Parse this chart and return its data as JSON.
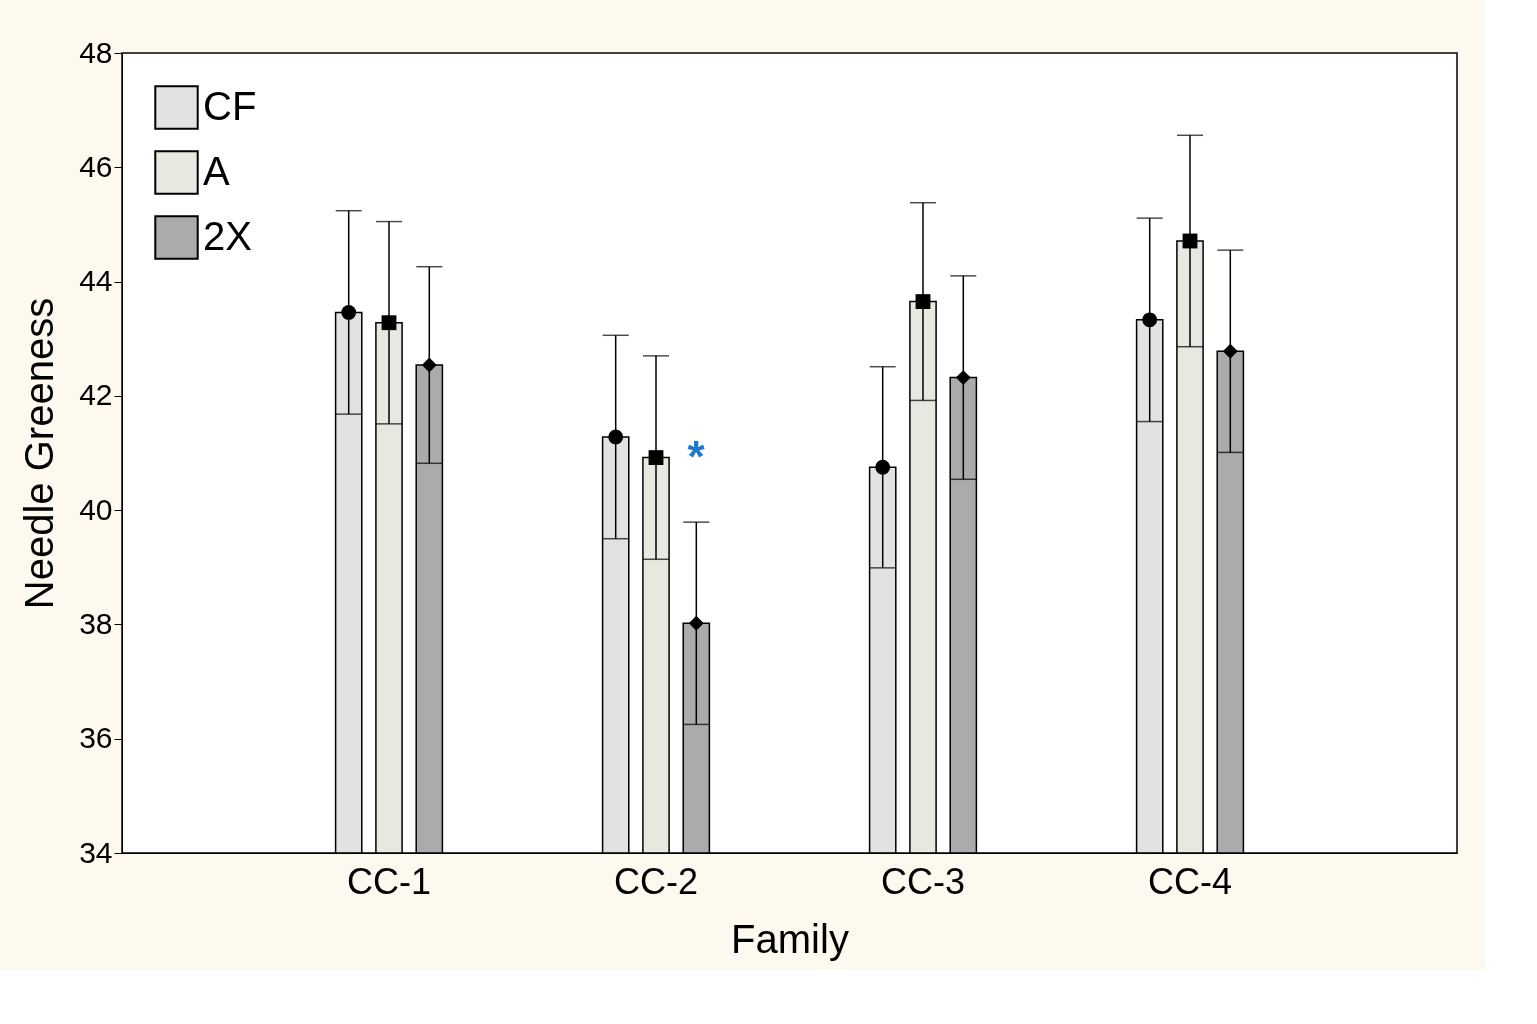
{
  "chart_data": {
    "type": "bar",
    "xlabel": "Family",
    "ylabel": "Needle Greeness",
    "categories": [
      "CC-1",
      "CC-2",
      "CC-3",
      "CC-4"
    ],
    "ylim": [
      34,
      48
    ],
    "yticks": [
      34,
      36,
      38,
      40,
      42,
      44,
      46,
      48
    ],
    "grid": false,
    "legend": "top left",
    "series": [
      {
        "name": "CF",
        "color": "#e2e2e0",
        "values": [
          43.46,
          41.28,
          40.75,
          43.33
        ],
        "errors": [
          1.78,
          1.78,
          1.76,
          1.78
        ]
      },
      {
        "name": "A",
        "color": "#e8e8e0",
        "values": [
          43.28,
          40.92,
          43.65,
          44.71
        ],
        "errors": [
          1.77,
          1.78,
          1.73,
          1.85
        ]
      },
      {
        "name": "2X",
        "color": "#ababab",
        "values": [
          42.54,
          38.02,
          42.32,
          42.78
        ],
        "errors": [
          1.72,
          1.77,
          1.78,
          1.77
        ]
      },
      {
        "type": "scatter",
        "color": "#000000",
        "marker": "circle",
        "x": [
          "CC-1",
          "CC-2",
          "CC-3",
          "CC-4"
        ],
        "values": [
          43.46,
          41.28,
          40.75,
          43.33
        ]
      },
      {
        "type": "scatter",
        "color": "#000000",
        "marker": "square",
        "x": [
          "CC-1",
          "CC-2",
          "CC-3",
          "CC-4"
        ],
        "values": [
          43.28,
          40.92,
          43.65,
          44.71
        ]
      },
      {
        "type": "scatter",
        "color": "#000000",
        "marker": "diamond",
        "x": [
          "CC-1",
          "CC-2",
          "CC-3",
          "CC-4"
        ],
        "values": [
          42.54,
          38.02,
          42.32,
          42.78
        ]
      }
    ],
    "annotations": [
      {
        "text": "*",
        "x": "CC-2",
        "y": 40.9
      }
    ]
  }
}
